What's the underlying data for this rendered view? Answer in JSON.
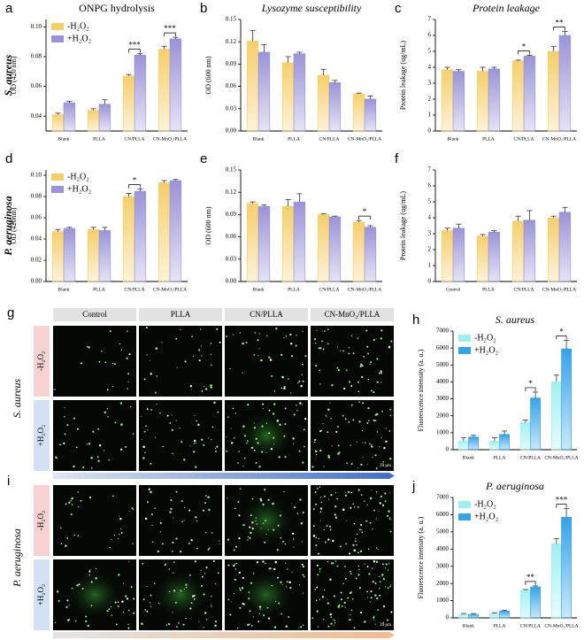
{
  "chart_data": [
    {
      "type": "bar",
      "panel": "a",
      "title": "ONPG hydrolysis",
      "side_label": "S. aureus",
      "ylabel": "OD (420 nm)",
      "categories": [
        "Blank",
        "PLLA",
        "CN/PLLA",
        "CN-MnO₂/PLLA"
      ],
      "series": [
        {
          "name": "-H₂O₂",
          "color": "#f7cf6a",
          "values": [
            0.041,
            0.044,
            0.067,
            0.085
          ],
          "errors": [
            0.001,
            0.001,
            0.001,
            0.002
          ]
        },
        {
          "name": "+H₂O₂",
          "color": "#9a93d8",
          "values": [
            0.049,
            0.048,
            0.081,
            0.092
          ],
          "errors": [
            0.001,
            0.003,
            0.001,
            0.001
          ]
        }
      ],
      "ylim": [
        0.03,
        0.105
      ],
      "yticks": [
        0.04,
        0.06,
        0.08,
        {
          "value": 0.1,
          "label": "0.10"
        }
      ],
      "legend": "upper left",
      "annotations": [
        {
          "text": "***",
          "category": 2
        },
        {
          "text": "***",
          "category": 3
        }
      ]
    },
    {
      "type": "bar",
      "panel": "b",
      "title": "Lysozyme susceptibility",
      "title_italic": true,
      "ylabel": "OD (600 nm)",
      "categories": [
        "Blank",
        "PLLA",
        "CN/PLLA",
        "CN-MnO₂/PLLA"
      ],
      "series": [
        {
          "color": "#f7cf6a",
          "values": [
            0.121,
            0.092,
            0.075,
            0.05
          ],
          "errors": [
            0.014,
            0.008,
            0.008,
            0.001
          ]
        },
        {
          "color": "#9a93d8",
          "values": [
            0.106,
            0.104,
            0.065,
            0.043
          ],
          "errors": [
            0.01,
            0.002,
            0.003,
            0.004
          ]
        }
      ],
      "ylim": [
        0,
        0.15
      ],
      "yticks": [
        {
          "value": 0,
          "label": "0.00"
        },
        0.03,
        0.06,
        0.09,
        0.12,
        0.15
      ]
    },
    {
      "type": "bar",
      "panel": "c",
      "title": "Protein leakage",
      "title_italic": true,
      "ylabel": "Protein leakage (ug/mL)",
      "categories": [
        "Blank",
        "PLLA",
        "CN/PLLA",
        "CN-MnO₂/PLLA"
      ],
      "series": [
        {
          "color": "#f7cf6a",
          "values": [
            3.85,
            3.75,
            4.4,
            5.0
          ],
          "errors": [
            0.15,
            0.25,
            0.05,
            0.3
          ]
        },
        {
          "color": "#9a93d8",
          "values": [
            3.75,
            3.9,
            4.7,
            6.0
          ],
          "errors": [
            0.1,
            0.1,
            0.05,
            0.25
          ]
        }
      ],
      "ylim": [
        0,
        7
      ],
      "yticks": [
        0,
        1,
        2,
        3,
        4,
        5,
        6,
        7
      ],
      "annotations": [
        {
          "text": "*",
          "category": 2
        },
        {
          "text": "**",
          "category": 3
        }
      ]
    },
    {
      "type": "bar",
      "panel": "d",
      "side_label": "P. aeruginosa",
      "ylabel": "OD (420nm)",
      "categories": [
        "Blank",
        "PLLA",
        "CN/PLLA",
        "CN-MnO₂/PLLA"
      ],
      "series": [
        {
          "name": "-H₂O₂",
          "color": "#f7cf6a",
          "values": [
            0.047,
            0.049,
            0.08,
            0.093
          ],
          "errors": [
            0.002,
            0.002,
            0.003,
            0.002
          ]
        },
        {
          "name": "+H₂O₂",
          "color": "#9a93d8",
          "values": [
            0.05,
            0.048,
            0.085,
            0.095
          ],
          "errors": [
            0.001,
            0.003,
            0.002,
            0.001
          ]
        }
      ],
      "ylim": [
        0,
        0.105
      ],
      "yticks": [
        {
          "value": 0,
          "label": "0.00"
        },
        0.02,
        0.04,
        0.06,
        0.08,
        {
          "value": 0.1,
          "label": "0.10"
        }
      ],
      "legend": "upper left",
      "annotations": [
        {
          "text": "*",
          "category": 2
        }
      ]
    },
    {
      "type": "bar",
      "panel": "e",
      "ylabel": "OD (600 nm)",
      "categories": [
        "Blank",
        "PLLA",
        "CN/PLLA",
        "CN-MnO₂/PLLA"
      ],
      "series": [
        {
          "color": "#f7cf6a",
          "values": [
            0.105,
            0.101,
            0.09,
            0.08
          ],
          "errors": [
            0.002,
            0.009,
            0.001,
            0.002
          ]
        },
        {
          "color": "#9a93d8",
          "values": [
            0.101,
            0.107,
            0.087,
            0.073
          ],
          "errors": [
            0.002,
            0.011,
            0.001,
            0.002
          ]
        }
      ],
      "ylim": [
        0,
        0.15
      ],
      "yticks": [
        {
          "value": 0,
          "label": "0.00"
        },
        0.03,
        0.06,
        0.09,
        0.12,
        0.15
      ],
      "annotations": [
        {
          "text": "*",
          "category": 3
        }
      ]
    },
    {
      "type": "bar",
      "panel": "f",
      "ylabel": "Protein leakage (ug/mL)",
      "categories": [
        "Control",
        "PLLA",
        "CN/PLLA",
        "CN-MnO₂/PLLA"
      ],
      "series": [
        {
          "color": "#f7cf6a",
          "values": [
            3.2,
            2.85,
            3.8,
            4.0
          ],
          "errors": [
            0.15,
            0.1,
            0.3,
            0.1
          ]
        },
        {
          "color": "#9a93d8",
          "values": [
            3.35,
            3.1,
            3.85,
            4.35
          ],
          "errors": [
            0.25,
            0.1,
            0.6,
            0.3
          ]
        }
      ],
      "ylim": [
        0,
        7
      ],
      "yticks": [
        0,
        1,
        2,
        3,
        4,
        5,
        6,
        7
      ]
    },
    {
      "type": "bar",
      "panel": "h",
      "title": "S. aureus",
      "title_italic": true,
      "ylabel": "Fluorescence intensity (a. u.)",
      "categories": [
        "Blank",
        "PLLA",
        "CN/PLLA",
        "CN-MnO₂/PLLA"
      ],
      "series": [
        {
          "name": "-H₂O₂",
          "color": "#9ff0f2",
          "values": [
            500,
            500,
            1600,
            4000
          ],
          "errors": [
            200,
            200,
            150,
            400
          ]
        },
        {
          "name": "+H₂O₂",
          "color": "#34a3ea",
          "values": [
            750,
            900,
            3050,
            5950
          ],
          "errors": [
            100,
            200,
            350,
            500
          ]
        }
      ],
      "ylim": [
        0,
        7000
      ],
      "yticks": [
        0,
        1000,
        2000,
        3000,
        4000,
        5000,
        6000,
        7000
      ],
      "legend": "upper left",
      "annotations": [
        {
          "text": "*",
          "category": 2
        },
        {
          "text": "*",
          "category": 3
        }
      ]
    },
    {
      "type": "bar",
      "panel": "j",
      "title": "P. aeruginosa",
      "title_italic": true,
      "ylabel": "Fluorescence intensity (a. u.)",
      "categories": [
        "Blank",
        "PLLA",
        "CN/PLLA",
        "CN-MnO₂/PLLA"
      ],
      "series": [
        {
          "name": "-H₂O₂",
          "color": "#9ff0f2",
          "values": [
            200,
            250,
            1600,
            4300
          ],
          "errors": [
            50,
            50,
            50,
            300
          ]
        },
        {
          "name": "+H₂O₂",
          "color": "#34a3ea",
          "values": [
            200,
            400,
            1800,
            5850
          ],
          "errors": [
            50,
            50,
            60,
            500
          ]
        }
      ],
      "ylim": [
        0,
        7000
      ],
      "yticks": [
        0,
        1000,
        2000,
        3000,
        4000,
        5000,
        6000,
        7000
      ],
      "legend": "upper left",
      "annotations": [
        {
          "text": "**",
          "category": 2
        },
        {
          "text": "***",
          "category": 3
        }
      ]
    }
  ],
  "micrographs": {
    "panels": [
      {
        "letter": "g",
        "species": "S. aureus"
      },
      {
        "letter": "i",
        "species": "P. aeruginosa"
      }
    ],
    "columns": [
      "Control",
      "PLLA",
      "CN/PLLA",
      "CN-MnO₂/PLLA"
    ],
    "rows": [
      "-H₂O₂",
      "+H₂O₂"
    ],
    "scale_bar": "20 μm"
  }
}
